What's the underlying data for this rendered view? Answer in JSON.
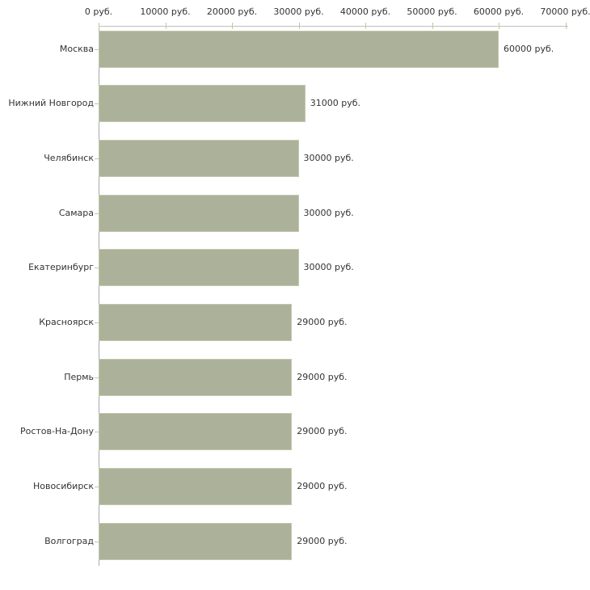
{
  "chart_data": {
    "type": "bar",
    "orientation": "horizontal",
    "title": "",
    "xlabel": "",
    "ylabel": "",
    "unit": "руб.",
    "xlim": [
      0,
      70000
    ],
    "grid": false,
    "legend": "none",
    "categories": [
      "Москва",
      "Нижний Новгород",
      "Челябинск",
      "Самара",
      "Екатеринбург",
      "Красноярск",
      "Пермь",
      "Ростов-На-Дону",
      "Новосибирск",
      "Волгоград"
    ],
    "values": [
      60000,
      31000,
      30000,
      30000,
      30000,
      29000,
      29000,
      29000,
      29000,
      29000
    ],
    "value_labels": [
      "60000 руб.",
      "31000 руб.",
      "30000 руб.",
      "30000 руб.",
      "30000 руб.",
      "29000 руб.",
      "29000 руб.",
      "29000 руб.",
      "29000 руб.",
      "29000 руб."
    ],
    "x_tick_values": [
      0,
      10000,
      20000,
      30000,
      40000,
      50000,
      60000,
      70000
    ],
    "x_tick_labels": [
      "0 руб.",
      "10000 руб.",
      "20000 руб.",
      "30000 руб.",
      "40000 руб.",
      "50000 руб.",
      "60000 руб.",
      "70000 руб."
    ],
    "colors": {
      "bar_fill": "#abb299",
      "bar_border": "#c3c7ad",
      "x_axis_line": "#c0c0c0",
      "y_axis_line": "#a8a8a8",
      "tick_mark": "#c6c6a0",
      "text": "#333333",
      "background": "#ffffff"
    }
  }
}
